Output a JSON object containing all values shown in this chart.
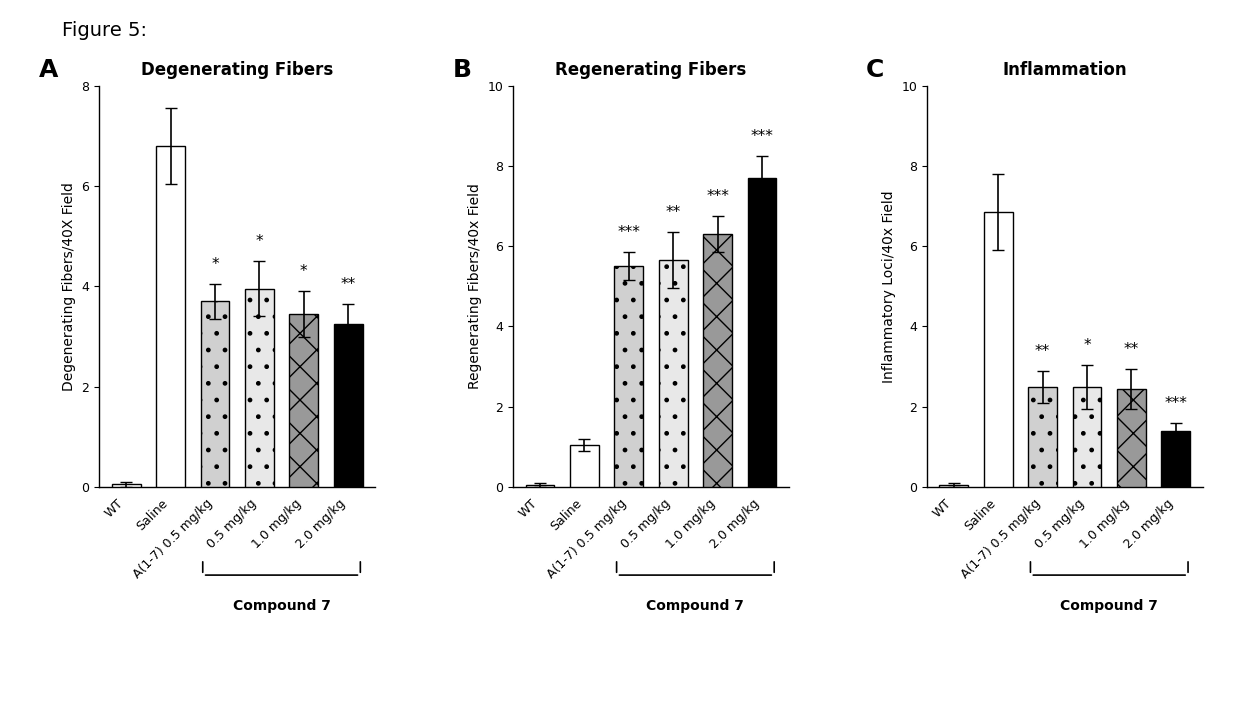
{
  "figure_title": "Figure 5:",
  "panels": [
    {
      "label": "A",
      "title": "Degenerating Fibers",
      "ylabel": "Degenerating Fibers/40X Field",
      "ylim": [
        0,
        8
      ],
      "yticks": [
        0,
        2,
        4,
        6,
        8
      ],
      "categories": [
        "WT",
        "Saline",
        "A(1-7) 0.5 mg/kg",
        "0.5 mg/kg",
        "1.0 mg/kg",
        "2.0 mg/kg"
      ],
      "values": [
        0.05,
        6.8,
        3.7,
        3.95,
        3.45,
        3.25
      ],
      "errors": [
        0.05,
        0.75,
        0.35,
        0.55,
        0.45,
        0.4
      ],
      "sig_labels": [
        "",
        "",
        "*",
        "*",
        "*",
        "**"
      ],
      "bar_colors": [
        "white",
        "white",
        "lightgray_dot",
        "white_dot",
        "gray_hatch",
        "black"
      ],
      "bar_patterns": [
        "",
        "",
        ".",
        ".",
        "x",
        ""
      ],
      "compound7_range": [
        2,
        5
      ],
      "compound7_label": "Compound 7"
    },
    {
      "label": "B",
      "title": "Regenerating Fibers",
      "ylabel": "Regenerating Fibers/40x Field",
      "ylim": [
        0,
        10
      ],
      "yticks": [
        0,
        2,
        4,
        6,
        8,
        10
      ],
      "categories": [
        "WT",
        "Saline",
        "A(1-7) 0.5 mg/kg",
        "0.5 mg/kg",
        "1.0 mg/kg",
        "2.0 mg/kg"
      ],
      "values": [
        0.05,
        1.05,
        5.5,
        5.65,
        6.3,
        7.7
      ],
      "errors": [
        0.05,
        0.15,
        0.35,
        0.7,
        0.45,
        0.55
      ],
      "sig_labels": [
        "",
        "",
        "***",
        "**",
        "***",
        "***"
      ],
      "bar_colors": [
        "white",
        "white",
        "lightgray_dot",
        "white_dot",
        "gray_hatch",
        "black"
      ],
      "bar_patterns": [
        "",
        "",
        ".",
        ".",
        "x",
        ""
      ],
      "compound7_range": [
        2,
        5
      ],
      "compound7_label": "Compound 7"
    },
    {
      "label": "C",
      "title": "Inflammation",
      "ylabel": "Inflammatory Loci/40x Field",
      "ylim": [
        0,
        10
      ],
      "yticks": [
        0,
        2,
        4,
        6,
        8,
        10
      ],
      "categories": [
        "WT",
        "Saline",
        "A(1-7) 0.5 mg/kg",
        "0.5 mg/kg",
        "1.0 mg/kg",
        "2.0 mg/kg"
      ],
      "values": [
        0.05,
        6.85,
        2.5,
        2.5,
        2.45,
        1.4
      ],
      "errors": [
        0.05,
        0.95,
        0.4,
        0.55,
        0.5,
        0.2
      ],
      "sig_labels": [
        "",
        "",
        "**",
        "*",
        "**",
        "***"
      ],
      "bar_colors": [
        "white",
        "white",
        "lightgray_dot",
        "white_dot",
        "gray_hatch",
        "black"
      ],
      "bar_patterns": [
        "",
        "",
        ".",
        ".",
        "x",
        ""
      ],
      "compound7_range": [
        2,
        5
      ],
      "compound7_label": "Compound 7"
    }
  ],
  "background_color": "#ffffff",
  "fig_title_fontsize": 14,
  "panel_label_fontsize": 18,
  "title_fontsize": 12,
  "ylabel_fontsize": 10,
  "tick_fontsize": 9,
  "sig_fontsize": 11,
  "compound7_fontsize": 10
}
